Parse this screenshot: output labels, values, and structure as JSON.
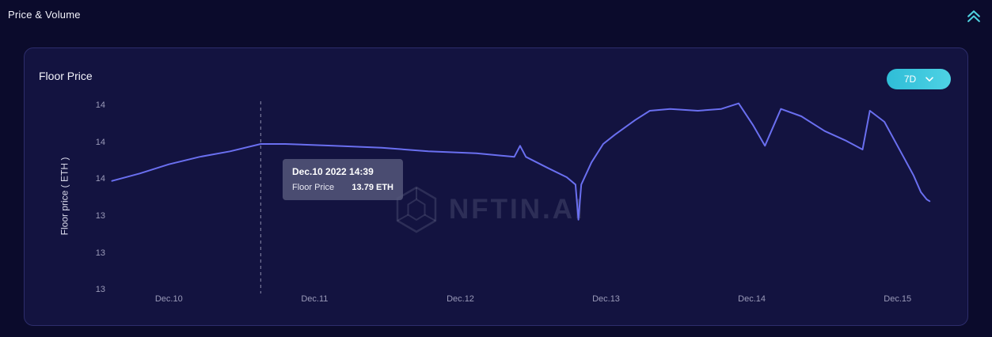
{
  "header": {
    "title": "Price & Volume"
  },
  "panel": {
    "title": "Floor Price",
    "range_selector": {
      "value": "7D"
    },
    "watermark": {
      "text": "NFTIN.AI"
    }
  },
  "tooltip": {
    "timestamp": "Dec.10 2022 14:39",
    "label": "Floor Price",
    "value": "13.79 ETH"
  },
  "colors": {
    "accent_teal": "#3fc8de",
    "line": "#6a6ff0",
    "panel_bg": "#131340",
    "page_bg": "#0b0b2c"
  },
  "chart_data": {
    "type": "line",
    "title": "Floor Price",
    "ylabel": "Floor price ( ETH )",
    "xlabel": "",
    "x_ticks": [
      "Dec.10",
      "Dec.11",
      "Dec.12",
      "Dec.13",
      "Dec.14",
      "Dec.15"
    ],
    "x_tick_values": [
      10,
      11,
      12,
      13,
      14,
      15
    ],
    "y_ticks": [
      "14",
      "14",
      "14",
      "13",
      "13",
      "13"
    ],
    "y_tick_values": [
      14.0,
      13.8,
      13.6,
      13.4,
      13.2,
      13.0
    ],
    "x_domain": [
      9.58,
      15.42
    ],
    "y_domain": [
      12.98,
      14.03
    ],
    "grid": false,
    "legend": false,
    "line_color": "#6a6ff0",
    "cursor": {
      "x": 10.63,
      "style": "dashed",
      "label": "Dec.10 2022 14:39",
      "value_eth": 13.79
    },
    "series": [
      {
        "name": "Floor Price",
        "points": [
          [
            9.61,
            13.59
          ],
          [
            9.8,
            13.63
          ],
          [
            10.0,
            13.68
          ],
          [
            10.21,
            13.72
          ],
          [
            10.42,
            13.75
          ],
          [
            10.63,
            13.79
          ],
          [
            10.8,
            13.79
          ],
          [
            11.13,
            13.78
          ],
          [
            11.46,
            13.77
          ],
          [
            11.78,
            13.75
          ],
          [
            12.11,
            13.74
          ],
          [
            12.37,
            13.72
          ],
          [
            12.41,
            13.78
          ],
          [
            12.45,
            13.72
          ],
          [
            12.6,
            13.66
          ],
          [
            12.73,
            13.61
          ],
          [
            12.79,
            13.57
          ],
          [
            12.81,
            13.38
          ],
          [
            12.83,
            13.57
          ],
          [
            12.9,
            13.69
          ],
          [
            12.98,
            13.79
          ],
          [
            13.06,
            13.84
          ],
          [
            13.2,
            13.92
          ],
          [
            13.3,
            13.97
          ],
          [
            13.44,
            13.98
          ],
          [
            13.63,
            13.97
          ],
          [
            13.79,
            13.98
          ],
          [
            13.91,
            14.01
          ],
          [
            14.01,
            13.89
          ],
          [
            14.09,
            13.78
          ],
          [
            14.2,
            13.98
          ],
          [
            14.34,
            13.94
          ],
          [
            14.5,
            13.86
          ],
          [
            14.64,
            13.81
          ],
          [
            14.76,
            13.76
          ],
          [
            14.81,
            13.97
          ],
          [
            14.91,
            13.91
          ],
          [
            15.02,
            13.75
          ],
          [
            15.11,
            13.62
          ],
          [
            15.16,
            13.53
          ],
          [
            15.2,
            13.49
          ],
          [
            15.22,
            13.48
          ]
        ]
      }
    ]
  }
}
